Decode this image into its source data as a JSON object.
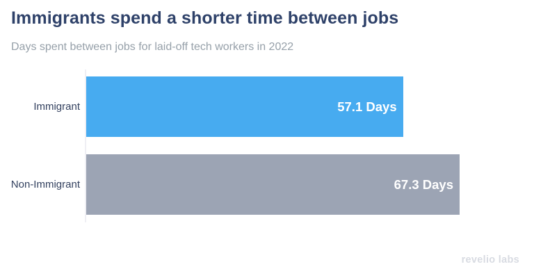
{
  "page": {
    "background": "#ffffff"
  },
  "header": {
    "title": "Immigrants spend a shorter time between jobs",
    "subtitle": "Days spent between jobs for laid-off tech workers in 2022"
  },
  "chart_data": {
    "type": "bar",
    "orientation": "horizontal",
    "title": "Immigrants spend a shorter time between jobs",
    "subtitle": "Days spent between jobs for laid-off tech workers in 2022",
    "categories": [
      "Immigrant",
      "Non-Immigrant"
    ],
    "values": [
      57.1,
      67.3
    ],
    "value_labels": [
      "57.1 Days",
      "67.3 Days"
    ],
    "unit": "Days",
    "bar_colors": [
      "#47abf0",
      "#9ca4b4"
    ],
    "xlim": [
      0,
      67.3
    ],
    "grid": false,
    "legend": false,
    "value_label_position": "inside-end"
  },
  "footer": {
    "brand": "revelio labs"
  },
  "colors": {
    "title_text": "#2e4169",
    "subtitle_text": "#96a0a9",
    "category_label_text": "#33415f",
    "value_label_text": "#ffffff",
    "axis_line": "#efeff4",
    "brand_text": "#d8dbe2"
  }
}
